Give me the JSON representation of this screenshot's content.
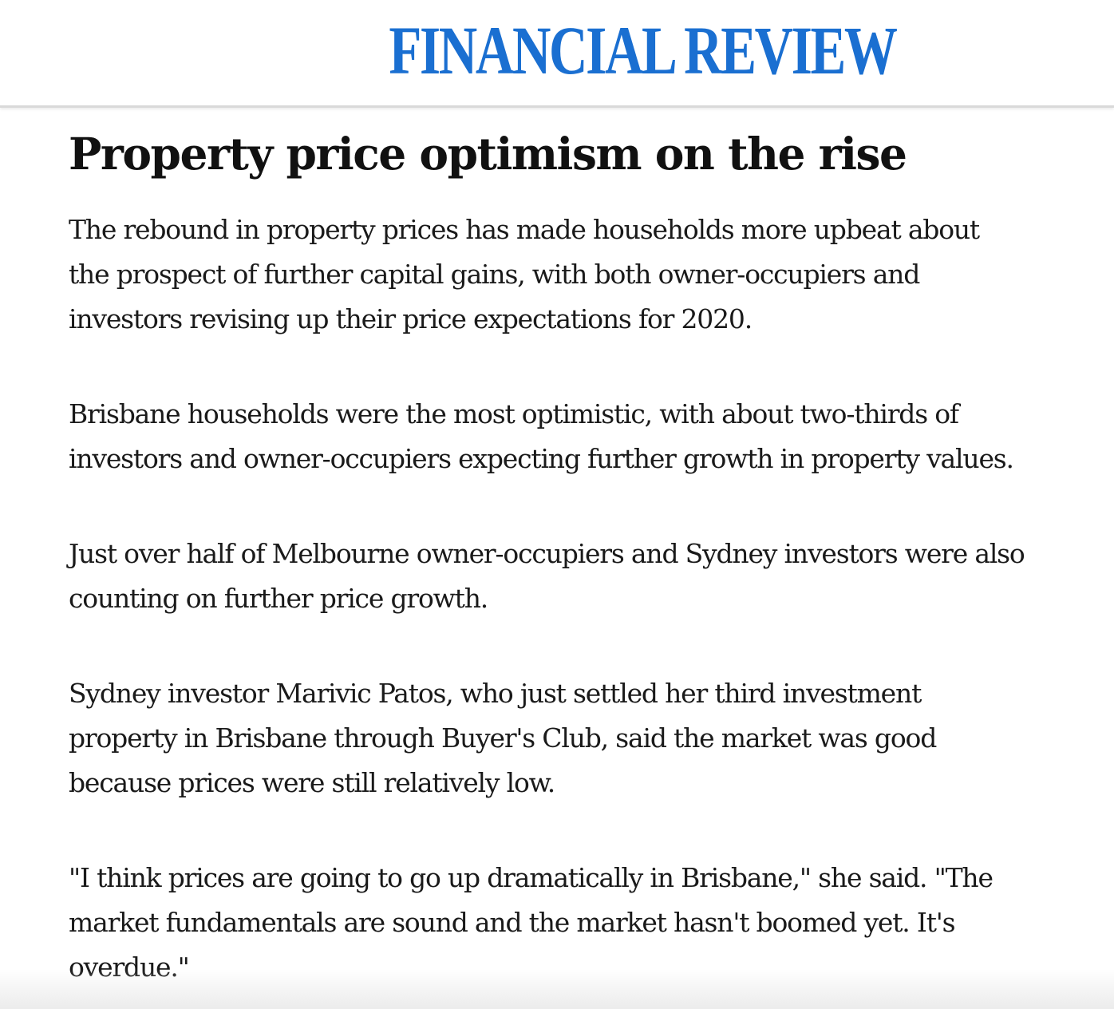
{
  "masthead": {
    "brand": "FINANCIAL REVIEW",
    "brand_color": "#1a6fd1"
  },
  "article": {
    "headline": "Property price optimism on the rise",
    "paragraphs": [
      "The rebound in property prices has made households more upbeat about the prospect of further capital gains, with both owner-occupiers and investors revising up their price expectations for 2020.",
      "Brisbane households were the most optimistic, with about two-thirds of investors and owner-occupiers expecting further growth in property values.",
      "Just over half of Melbourne owner-occupiers and Sydney investors were also counting on further price growth.",
      "Sydney investor Marivic Patos, who just settled her third investment property in Brisbane through Buyer's Club, said the market was good because prices were still relatively low.",
      "\"I think prices are going to go up dramatically in Brisbane,\" she said. \"The market fundamentals are sound and the market hasn't boomed yet. It's overdue.\""
    ]
  }
}
